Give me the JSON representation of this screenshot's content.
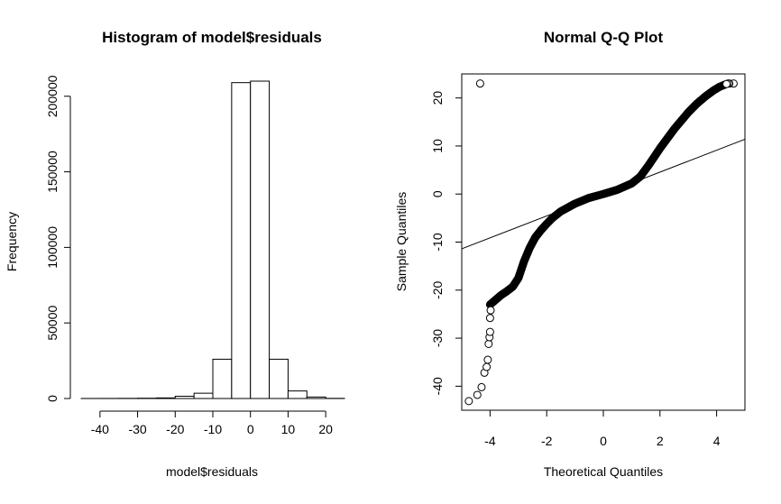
{
  "chart_data": [
    {
      "type": "bar",
      "title": "Histogram of model$residuals",
      "xlabel": "model$residuals",
      "ylabel": "Frequency",
      "bin_edges": [
        -45,
        -40,
        -35,
        -30,
        -25,
        -20,
        -15,
        -10,
        -5,
        0,
        5,
        10,
        15,
        20,
        25
      ],
      "values": [
        30,
        50,
        100,
        200,
        400,
        1500,
        3500,
        26000,
        209000,
        210000,
        26000,
        5000,
        1000,
        100
      ],
      "xticks": [
        "-40",
        "-30",
        "-20",
        "-10",
        "0",
        "10",
        "20"
      ],
      "xtick_values": [
        -40,
        -30,
        -20,
        -10,
        0,
        10,
        20
      ],
      "yticks": [
        "0",
        "50000",
        "100000",
        "150000",
        "200000"
      ],
      "ytick_values": [
        0,
        50000,
        100000,
        150000,
        200000
      ],
      "xlim": [
        -45,
        25
      ],
      "ylim": [
        0,
        210000
      ],
      "grid": false
    },
    {
      "type": "scatter",
      "title": "Normal Q-Q Plot",
      "xlabel": "Theoretical Quantiles",
      "ylabel": "Sample Quantiles",
      "xticks": [
        "-4",
        "-2",
        "0",
        "2",
        "4"
      ],
      "xtick_values": [
        -4,
        -2,
        0,
        2,
        4
      ],
      "yticks": [
        "-40",
        "-30",
        "-20",
        "-10",
        "0",
        "10",
        "20"
      ],
      "ytick_values": [
        -40,
        -30,
        -20,
        -10,
        0,
        10,
        20
      ],
      "xlim": [
        -5,
        5
      ],
      "ylim": [
        -45,
        25
      ],
      "points": [
        [
          -4.75,
          -43.1
        ],
        [
          -4.45,
          -41.8
        ],
        [
          -4.3,
          -40.2
        ],
        [
          -4.2,
          -37.2
        ],
        [
          -4.12,
          -36
        ],
        [
          -4.08,
          -34.5
        ],
        [
          -4.05,
          -31.2
        ],
        [
          -4.02,
          -29.8
        ],
        [
          -4.0,
          -28.7
        ],
        [
          -4.0,
          -25.8
        ],
        [
          -3.98,
          -24.2
        ],
        [
          -4.35,
          23.0
        ],
        [
          4.6,
          23.0
        ],
        [
          4.45,
          23.0
        ],
        [
          4.4,
          23.0
        ],
        [
          4.35,
          22.9
        ]
      ],
      "qq_curve": [
        [
          -4.0,
          -23.0
        ],
        [
          -3.8,
          -22.0
        ],
        [
          -3.6,
          -21.0
        ],
        [
          -3.4,
          -20.2
        ],
        [
          -3.2,
          -19.3
        ],
        [
          -3.0,
          -17.5
        ],
        [
          -2.8,
          -14.0
        ],
        [
          -2.6,
          -11.2
        ],
        [
          -2.4,
          -9.0
        ],
        [
          -2.2,
          -7.5
        ],
        [
          -2.0,
          -6.2
        ],
        [
          -1.8,
          -5.0
        ],
        [
          -1.5,
          -3.6
        ],
        [
          -1.0,
          -2.0
        ],
        [
          -0.5,
          -0.8
        ],
        [
          0.0,
          0.0
        ],
        [
          0.5,
          0.9
        ],
        [
          1.0,
          2.2
        ],
        [
          1.3,
          3.6
        ],
        [
          1.6,
          6.0
        ],
        [
          2.0,
          9.5
        ],
        [
          2.5,
          13.5
        ],
        [
          3.0,
          17.0
        ],
        [
          3.3,
          18.8
        ],
        [
          3.6,
          20.3
        ],
        [
          3.9,
          21.6
        ],
        [
          4.1,
          22.3
        ],
        [
          4.3,
          22.8
        ]
      ],
      "reference_line": {
        "intercept": 0,
        "slope": 2.28
      },
      "grid": false
    }
  ]
}
